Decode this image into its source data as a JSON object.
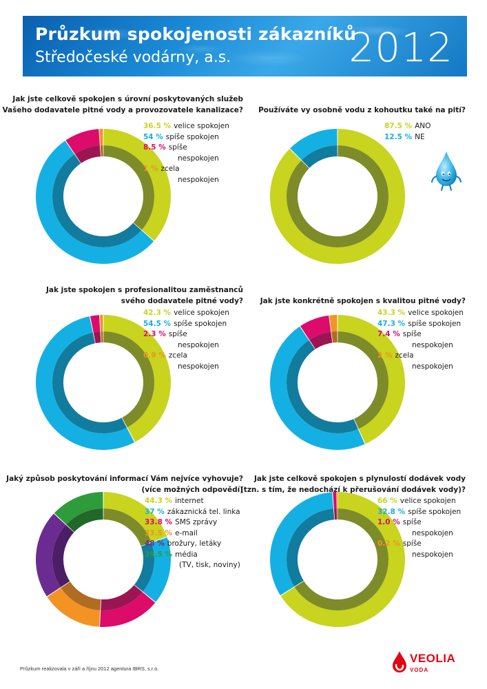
{
  "header": {
    "title": "Průzkum spokojenosti zákazníků",
    "subtitle": "Středočeské vodárny, a.s.",
    "year": "2012"
  },
  "footer": {
    "note": "Průzkum realizovala v září a říjnu 2012 agentura IBRS, s.r.o."
  },
  "logo": {
    "name": "VEOLIA",
    "sub": "VODA"
  },
  "colors": {
    "yellow": "#c8d41e",
    "blue": "#15b0e3",
    "magenta": "#dd0b69",
    "orange": "#f39323",
    "purple": "#6b2c91",
    "green": "#2f9c3c",
    "inner_ring": "#5f6b37"
  },
  "chart_data": [
    {
      "type": "pie",
      "title_lines": [
        "Jak jste celkově spokojen s úrovní poskytovaných služeb",
        "Vašeho dodavatele pitné vody a provozovatele kanalizace?"
      ],
      "slices": [
        {
          "value": 36.5,
          "pct_label": "36.5 %",
          "label_lines": [
            "velice spokojen"
          ],
          "color": "#c8d41e",
          "inner": "#7e8b29"
        },
        {
          "value": 54,
          "pct_label": "54 %",
          "label_lines": [
            "spíše spokojen"
          ],
          "color": "#15b0e3",
          "inner": "#127c9e"
        },
        {
          "value": 8.5,
          "pct_label": "8.5 %",
          "label_lines": [
            "spíše",
            "nespokojen"
          ],
          "color": "#dd0b69",
          "inner": "#9c1553"
        },
        {
          "value": 1,
          "pct_label": "1 %",
          "label_lines": [
            "zcela",
            "nespokojen"
          ],
          "color": "#f39323",
          "inner": "#b06c22"
        }
      ]
    },
    {
      "type": "pie",
      "title_lines": [
        "Používáte vy osobně vodu z kohoutku také na pití?"
      ],
      "slices": [
        {
          "value": 87.5,
          "pct_label": "87.5 %",
          "label_lines": [
            "ANO"
          ],
          "color": "#c8d41e",
          "inner": "#7e8b29"
        },
        {
          "value": 12.5,
          "pct_label": "12.5 %",
          "label_lines": [
            "NE"
          ],
          "color": "#15b0e3",
          "inner": "#127c9e"
        }
      ]
    },
    {
      "type": "pie",
      "title_lines": [
        "Jak jste spokojen s profesionalitou zaměstnanců",
        "svého dodavatele pitné vody?"
      ],
      "slices": [
        {
          "value": 42.3,
          "pct_label": "42.3 %",
          "label_lines": [
            "velice spokojen"
          ],
          "color": "#c8d41e",
          "inner": "#7e8b29"
        },
        {
          "value": 54.5,
          "pct_label": "54.5 %",
          "label_lines": [
            "spíše spokojen"
          ],
          "color": "#15b0e3",
          "inner": "#127c9e"
        },
        {
          "value": 2.3,
          "pct_label": "2.3 %",
          "label_lines": [
            "spíše",
            "nespokojen"
          ],
          "color": "#dd0b69",
          "inner": "#9c1553"
        },
        {
          "value": 0.9,
          "pct_label": "0.9 %",
          "label_lines": [
            "zcela",
            "nespokojen"
          ],
          "color": "#f39323",
          "inner": "#b06c22"
        }
      ]
    },
    {
      "type": "pie",
      "title_lines": [
        "Jak jste konkrétně spokojen s kvalitou pitné vody?"
      ],
      "slices": [
        {
          "value": 43.3,
          "pct_label": "43.3 %",
          "label_lines": [
            "velice spokojen"
          ],
          "color": "#c8d41e",
          "inner": "#7e8b29"
        },
        {
          "value": 47.3,
          "pct_label": "47.3 %",
          "label_lines": [
            "spíše spokojen"
          ],
          "color": "#15b0e3",
          "inner": "#127c9e"
        },
        {
          "value": 7.4,
          "pct_label": "7.4 %",
          "label_lines": [
            "spíše",
            "nespokojen"
          ],
          "color": "#dd0b69",
          "inner": "#9c1553"
        },
        {
          "value": 2,
          "pct_label": "2 %",
          "label_lines": [
            "zcela",
            "nespokojen"
          ],
          "color": "#f39323",
          "inner": "#b06c22"
        }
      ]
    },
    {
      "type": "pie",
      "title_lines": [
        "Jaký způsob poskytování informací Vám nejvíce vyhovuje?",
        "(více možných odpovědí)"
      ],
      "slices": [
        {
          "value": 44.3,
          "pct_label": "44.3 %",
          "label_lines": [
            "internet"
          ],
          "color": "#c8d41e",
          "inner": "#7e8b29"
        },
        {
          "value": 37,
          "pct_label": "37 %",
          "label_lines": [
            "zákaznická tel. linka"
          ],
          "color": "#15b0e3",
          "inner": "#127c9e"
        },
        {
          "value": 33.8,
          "pct_label": "33.8 %",
          "label_lines": [
            "SMS zprávy"
          ],
          "color": "#dd0b69",
          "inner": "#9c1553"
        },
        {
          "value": 33.5,
          "pct_label": "33.5 %",
          "label_lines": [
            "e-mail"
          ],
          "color": "#f39323",
          "inner": "#b06c22"
        },
        {
          "value": 48,
          "pct_label": "48 %",
          "label_lines": [
            "brožury, letáky"
          ],
          "color": "#6b2c91",
          "inner": "#4a1f66"
        },
        {
          "value": 29.5,
          "pct_label": "29.5 %",
          "label_lines": [
            "média",
            "(TV, tisk, noviny)"
          ],
          "color": "#2f9c3c",
          "inner": "#21682a"
        }
      ]
    },
    {
      "type": "pie",
      "title_lines": [
        "Jak jste celkově spokojen s plynulostí dodávek vody",
        "(tzn. s tím, že nedochází k přerušování dodávek vody)?"
      ],
      "slices": [
        {
          "value": 66,
          "pct_label": "66 %",
          "label_lines": [
            "velice spokojen"
          ],
          "color": "#c8d41e",
          "inner": "#7e8b29"
        },
        {
          "value": 32.8,
          "pct_label": "32.8 %",
          "label_lines": [
            "spíše spokojen"
          ],
          "color": "#15b0e3",
          "inner": "#127c9e"
        },
        {
          "value": 1.0,
          "pct_label": "1.0 %",
          "label_lines": [
            "spíše",
            "nespokojen"
          ],
          "color": "#dd0b69",
          "inner": "#9c1553"
        },
        {
          "value": 0.2,
          "pct_label": "0.2 %",
          "label_lines": [
            "spíše",
            "nespokojen"
          ],
          "color": "#f39323",
          "inner": "#b06c22"
        }
      ]
    }
  ]
}
